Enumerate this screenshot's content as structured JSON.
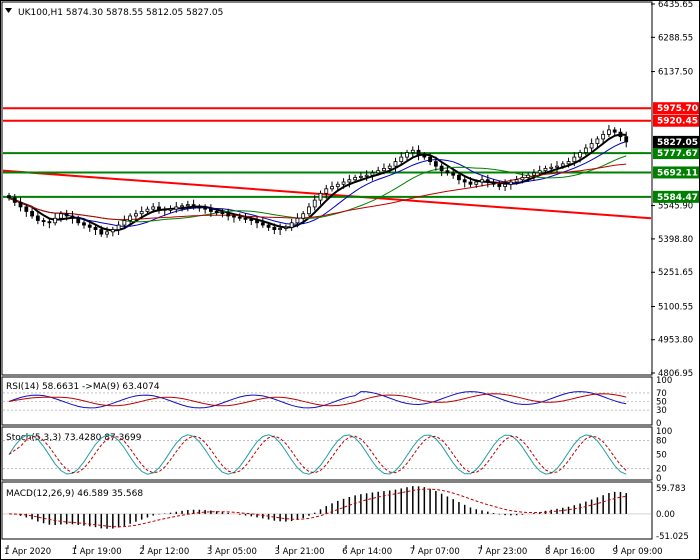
{
  "window": {
    "menu_icon": "dropdown-triangle-icon"
  },
  "panels": {
    "main": {
      "symbol": "UK100,H1",
      "ohlc": "5874.30 5878.55 5812.05 5827.05",
      "title": "UK100,H1  5874.30 5878.55 5812.05 5827.05"
    },
    "rsi": {
      "title": "RSI(14) 58.6631  ->MA(9) 63.4074"
    },
    "stoch": {
      "title": "Stoch(5,3,3) 73.4280 87.3699"
    },
    "macd": {
      "title": "MACD(12,26,9) 46.589 35.568"
    }
  },
  "chart_data": [
    {
      "type": "candlestick",
      "symbol": "UK100",
      "timeframe": "H1",
      "open": 5874.3,
      "high": 5878.55,
      "low": 5812.05,
      "close": 5827.05,
      "ylim": [
        4806.95,
        6435.65
      ],
      "y_ticks": [
        "6435.65",
        "6288.55",
        "6137.50",
        "5545.90",
        "5398.80",
        "5251.65",
        "5100.55",
        "4953.80",
        "4806.95"
      ],
      "x_ticks": [
        "1 Apr 2020",
        "1 Apr 19:00",
        "2 Apr 12:00",
        "3 Apr 05:00",
        "3 Apr 21:00",
        "6 Apr 14:00",
        "7 Apr 07:00",
        "7 Apr 23:00",
        "8 Apr 16:00",
        "9 Apr 09:00"
      ],
      "price_levels": [
        {
          "value": 5975.7,
          "label": "5975.70",
          "color": "#ff0000"
        },
        {
          "value": 5920.45,
          "label": "5920.45",
          "color": "#ff0000"
        },
        {
          "value": 5777.67,
          "label": "5777.67",
          "color": "#008000"
        },
        {
          "value": 5692.11,
          "label": "5692.11",
          "color": "#008000"
        },
        {
          "value": 5584.47,
          "label": "5584.47",
          "color": "#008000"
        }
      ],
      "current_price": {
        "value": 5827.05,
        "label": "5827.05",
        "color": "#000000"
      },
      "trendline": {
        "from": 5700,
        "to": 5490,
        "color": "#ff0000"
      },
      "closes": [
        5580,
        5560,
        5540,
        5520,
        5500,
        5480,
        5475,
        5470,
        5490,
        5510,
        5500,
        5490,
        5470,
        5460,
        5450,
        5440,
        5420,
        5430,
        5440,
        5460,
        5480,
        5500,
        5510,
        5520,
        5530,
        5540,
        5530,
        5525,
        5530,
        5540,
        5545,
        5550,
        5540,
        5535,
        5530,
        5520,
        5515,
        5510,
        5500,
        5495,
        5490,
        5485,
        5480,
        5470,
        5460,
        5450,
        5440,
        5445,
        5450,
        5470,
        5490,
        5510,
        5540,
        5570,
        5600,
        5620,
        5630,
        5640,
        5650,
        5660,
        5670,
        5675,
        5680,
        5690,
        5700,
        5710,
        5720,
        5740,
        5760,
        5780,
        5790,
        5770,
        5760,
        5740,
        5720,
        5700,
        5690,
        5680,
        5660,
        5650,
        5640,
        5650,
        5660,
        5650,
        5640,
        5630,
        5640,
        5650,
        5660,
        5670,
        5680,
        5690,
        5700,
        5710,
        5715,
        5720,
        5730,
        5740,
        5760,
        5780,
        5800,
        5820,
        5840,
        5860,
        5880,
        5870,
        5850,
        5827
      ]
    },
    {
      "type": "line",
      "name": "RSI(14)",
      "value": 58.6631,
      "ma_value": 63.4074,
      "ylim": [
        0,
        100
      ],
      "y_ticks": [
        "100",
        "70",
        "50",
        "30",
        "0"
      ],
      "levels": [
        70,
        50,
        30
      ]
    },
    {
      "type": "line",
      "name": "Stoch(5,3,3)",
      "main": 73.428,
      "signal": 87.3699,
      "ylim": [
        0,
        100
      ],
      "y_ticks": [
        "100",
        "80",
        "50",
        "20",
        "0"
      ],
      "levels": [
        80,
        20
      ]
    },
    {
      "type": "bar",
      "name": "MACD(12,26,9)",
      "macd": 46.589,
      "signal": 35.568,
      "y_ticks": [
        "59.783",
        "0.00",
        "-51.025"
      ],
      "ylim": [
        -51.025,
        59.783
      ]
    }
  ]
}
